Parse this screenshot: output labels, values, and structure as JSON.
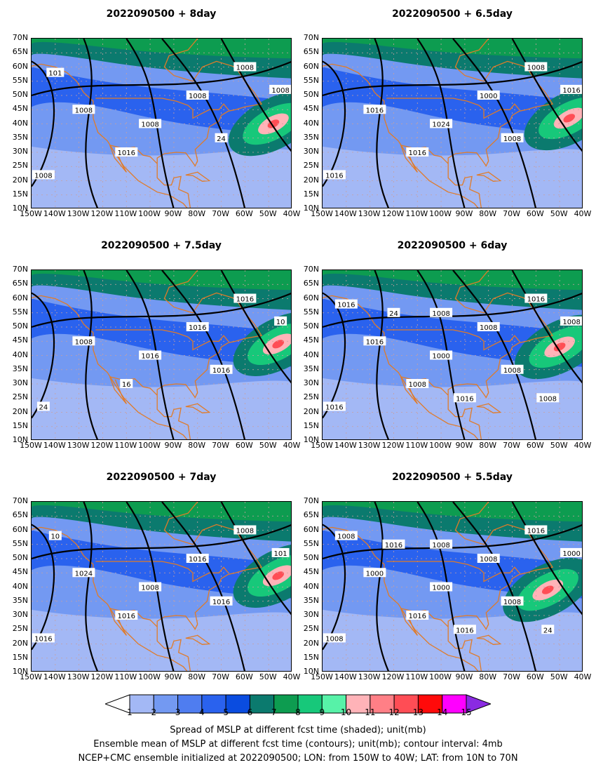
{
  "panels": [
    {
      "title": "2022090500  +  8day",
      "high_spread_center": [
        48,
        40
      ],
      "contour_labels": [
        "1008",
        "1008",
        "1008",
        "1008",
        "1008",
        "1016",
        "24",
        "1008",
        "101"
      ]
    },
    {
      "title": "2022090500  +  6.5day",
      "high_spread_center": [
        46,
        42
      ],
      "contour_labels": [
        "1016",
        "1024",
        "1000",
        "1008",
        "1016",
        "1016",
        "1008",
        "1016"
      ]
    },
    {
      "title": "2022090500  +  7.5day",
      "high_spread_center": [
        46,
        44
      ],
      "contour_labels": [
        "1008",
        "1016",
        "1016",
        "1016",
        "24",
        "16",
        "1016",
        "10"
      ]
    },
    {
      "title": "2022090500  +  6day",
      "high_spread_center": [
        50,
        43
      ],
      "contour_labels": [
        "1016",
        "1000",
        "1008",
        "1016",
        "1016",
        "1008",
        "1008",
        "1008",
        "1016",
        "1016",
        "24",
        "1008",
        "1008"
      ]
    },
    {
      "title": "2022090500  +  7day",
      "high_spread_center": [
        46,
        44
      ],
      "contour_labels": [
        "1024",
        "1008",
        "1016",
        "1008",
        "1016",
        "1016",
        "1016",
        "101",
        "10"
      ]
    },
    {
      "title": "2022090500  +  5.5day",
      "high_spread_center": [
        55,
        39
      ],
      "contour_labels": [
        "1000",
        "1000",
        "1008",
        "1016",
        "1008",
        "1016",
        "1008",
        "1000",
        "1008",
        "1016",
        "1016",
        "24",
        "1008"
      ]
    }
  ],
  "lat_labels": [
    "70N",
    "65N",
    "60N",
    "55N",
    "50N",
    "45N",
    "40N",
    "35N",
    "30N",
    "25N",
    "20N",
    "15N",
    "10N"
  ],
  "lon_labels": [
    "150W",
    "140W",
    "130W",
    "120W",
    "110W",
    "100W",
    "90W",
    "80W",
    "70W",
    "60W",
    "50W",
    "40W"
  ],
  "colorbar": {
    "ticks": [
      "1",
      "2",
      "3",
      "4",
      "5",
      "6",
      "7",
      "8",
      "9",
      "10",
      "11",
      "12",
      "13",
      "14",
      "15"
    ],
    "colors": [
      "#ffffff",
      "#a3b8f5",
      "#7399f2",
      "#4f7df0",
      "#2a62ee",
      "#0a4ce0",
      "#0b7a6e",
      "#0d9c50",
      "#17c87a",
      "#57f2a8",
      "#ffb3b8",
      "#ff7f86",
      "#ff4d55",
      "#ff0a0a",
      "#ff00ff",
      "#8a2be2"
    ]
  },
  "caption": {
    "line1": "Spread of MSLP at different fcst time (shaded); unit(mb)",
    "line2": "Ensemble mean of MSLP at different fcst time (contours); unit(mb); contour interval: 4mb",
    "line3": "NCEP+CMC ensemble initialized at 2022090500; LON: from 150W to 40W; LAT: from 10N to 70N"
  }
}
